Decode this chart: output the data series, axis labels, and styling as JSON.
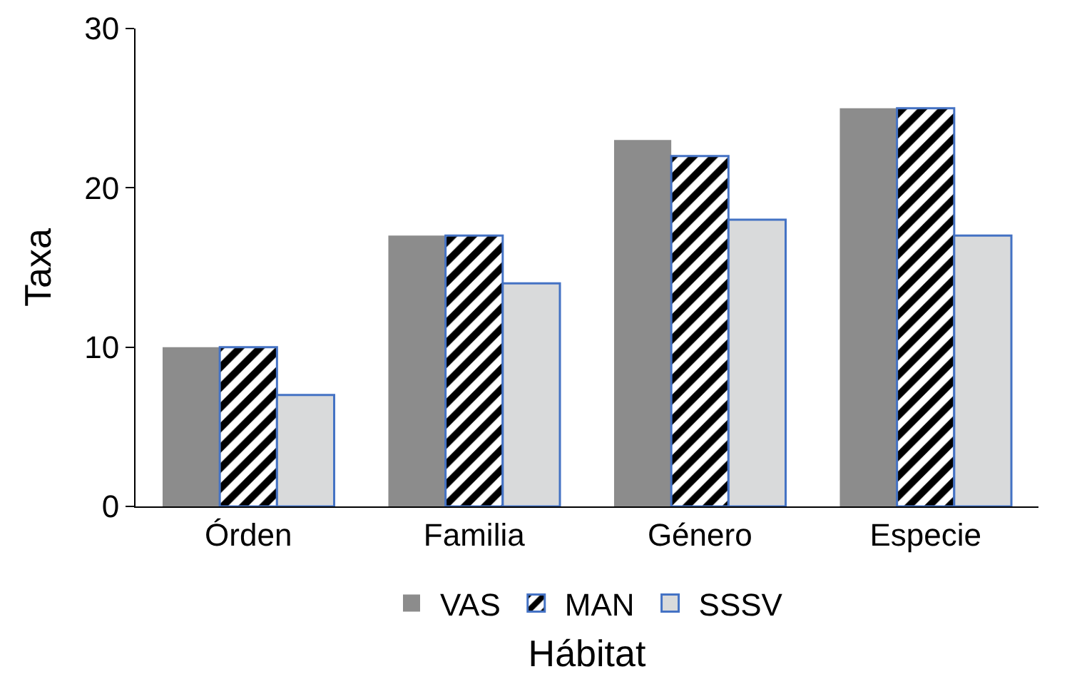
{
  "chart_data": {
    "type": "bar",
    "xlabel": "Hábitat",
    "ylabel": "Taxa",
    "categories": [
      "Órden",
      "Familia",
      "Género",
      "Especie"
    ],
    "series": [
      {
        "name": "VAS",
        "color": "#8c8c8c",
        "values": [
          10,
          17,
          23,
          25
        ]
      },
      {
        "name": "MAN",
        "color": "#4472c4",
        "values": [
          10,
          17,
          22,
          25
        ]
      },
      {
        "name": "SSSV",
        "color": "#d9dadb",
        "values": [
          7,
          14,
          18,
          17
        ]
      }
    ],
    "ylim": [
      0,
      30
    ],
    "yticks": [
      0,
      10,
      20,
      30
    ],
    "grid": false,
    "legend": "bottom"
  }
}
